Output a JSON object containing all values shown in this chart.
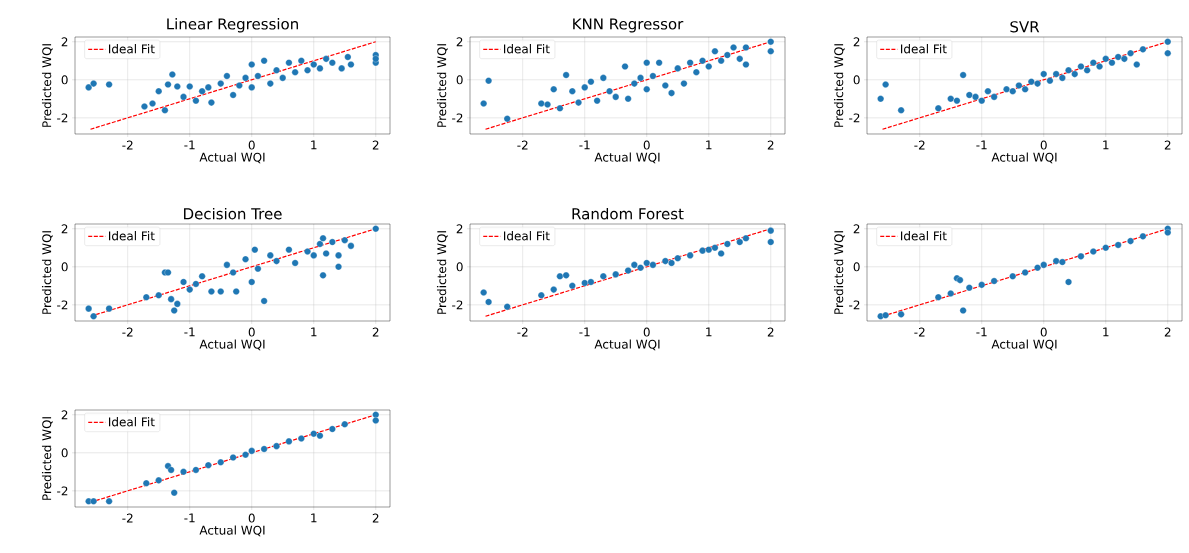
{
  "chart_data": [
    {
      "type": "scatter",
      "title": "Linear Regression",
      "xlabel": "Actual WQI",
      "ylabel": "Predicted WQI",
      "xlim": [
        -2.85,
        2.23
      ],
      "ylim": [
        -2.85,
        2.25
      ],
      "xticks": [
        -2,
        -1,
        0,
        1,
        2
      ],
      "yticks": [
        -2,
        0,
        2
      ],
      "grid": true,
      "legend": "top left",
      "series": [
        {
          "name": "Ideal Fit",
          "type": "line",
          "line_style": "dashed",
          "color": "#ff0000",
          "x": [
            -2.6,
            2
          ],
          "values": [
            -2.6,
            2
          ]
        },
        {
          "type": "scatter",
          "marker": "circle",
          "color": "#1f77b4",
          "x": [
            -2.63,
            -2.55,
            -2.3,
            -1.73,
            -1.6,
            -1.5,
            -1.4,
            -1.35,
            -1.28,
            -1.2,
            -1.1,
            -1.0,
            -0.9,
            -0.8,
            -0.7,
            -0.65,
            -0.5,
            -0.4,
            -0.3,
            -0.2,
            -0.1,
            0,
            0,
            0.1,
            0.2,
            0.3,
            0.4,
            0.5,
            0.6,
            0.7,
            0.8,
            0.9,
            1.0,
            1.1,
            1.2,
            1.3,
            1.45,
            1.55,
            1.6,
            2.0,
            2.0,
            2.0
          ],
          "values": [
            -0.4,
            -0.2,
            -0.25,
            -1.4,
            -1.25,
            -0.6,
            -1.6,
            -0.25,
            0.28,
            -0.35,
            -0.9,
            -0.35,
            -1.1,
            -0.6,
            -0.4,
            -1.2,
            -0.2,
            0.2,
            -0.8,
            -0.3,
            0.1,
            0.8,
            -0.4,
            0.2,
            1.0,
            -0.2,
            0.5,
            0.1,
            0.9,
            0.4,
            1.0,
            0.5,
            0.8,
            0.6,
            1.1,
            0.9,
            0.6,
            1.2,
            0.8,
            1.3,
            0.9,
            1.1
          ]
        }
      ]
    },
    {
      "type": "scatter",
      "title": "KNN Regressor",
      "xlabel": "Actual WQI",
      "ylabel": "Predicted WQI",
      "xlim": [
        -2.85,
        2.23
      ],
      "ylim": [
        -2.85,
        2.25
      ],
      "xticks": [
        -2,
        -1,
        0,
        1,
        2
      ],
      "yticks": [
        -2,
        0,
        2
      ],
      "grid": true,
      "legend": "top left",
      "series": [
        {
          "name": "Ideal Fit",
          "type": "line",
          "line_style": "dashed",
          "color": "#ff0000",
          "x": [
            -2.6,
            2
          ],
          "values": [
            -2.6,
            2
          ]
        },
        {
          "type": "scatter",
          "marker": "circle",
          "color": "#1f77b4",
          "x": [
            -2.63,
            -2.55,
            -2.25,
            -1.7,
            -1.6,
            -1.5,
            -1.4,
            -1.3,
            -1.2,
            -1.1,
            -1.0,
            -0.9,
            -0.8,
            -0.7,
            -0.6,
            -0.5,
            -0.35,
            -0.3,
            -0.2,
            -0.1,
            0,
            0,
            0.1,
            0.2,
            0.3,
            0.4,
            0.5,
            0.6,
            0.7,
            0.8,
            0.9,
            1.0,
            1.1,
            1.2,
            1.3,
            1.4,
            1.5,
            1.6,
            1.6,
            2.0,
            2.0
          ],
          "values": [
            -1.25,
            -0.05,
            -2.05,
            -1.25,
            -1.3,
            -0.5,
            -1.5,
            0.25,
            -0.6,
            -1.2,
            -0.4,
            -0.1,
            -1.1,
            0.1,
            -0.6,
            -0.9,
            0.7,
            -1.0,
            -0.2,
            0.1,
            0.9,
            -0.5,
            0.2,
            0.9,
            -0.3,
            -0.7,
            0.6,
            -0.2,
            0.9,
            0.4,
            1.0,
            0.7,
            1.5,
            1.0,
            1.3,
            1.7,
            1.1,
            1.7,
            0.8,
            2.0,
            1.5
          ]
        }
      ]
    },
    {
      "type": "scatter",
      "title": "SVR",
      "xlabel": "Actual WQI",
      "ylabel": "Predicted WQI",
      "xlim": [
        -2.85,
        2.23
      ],
      "ylim": [
        -2.85,
        2.25
      ],
      "xticks": [
        -2,
        -1,
        0,
        1,
        2
      ],
      "yticks": [
        -2,
        0,
        2
      ],
      "grid": true,
      "legend": "top left",
      "series": [
        {
          "name": "Ideal Fit",
          "type": "line",
          "line_style": "dashed",
          "color": "#ff0000",
          "x": [
            -2.6,
            2
          ],
          "values": [
            -2.6,
            2
          ]
        },
        {
          "type": "scatter",
          "marker": "circle",
          "color": "#1f77b4",
          "x": [
            -2.63,
            -2.55,
            -2.3,
            -1.7,
            -1.5,
            -1.4,
            -1.3,
            -1.2,
            -1.1,
            -1.0,
            -0.9,
            -0.8,
            -0.6,
            -0.5,
            -0.4,
            -0.3,
            -0.2,
            -0.1,
            0,
            0.1,
            0.2,
            0.3,
            0.4,
            0.5,
            0.6,
            0.7,
            0.8,
            0.9,
            1.0,
            1.1,
            1.2,
            1.3,
            1.4,
            1.5,
            1.6,
            2.0,
            2.0
          ],
          "values": [
            -1.0,
            -0.25,
            -1.6,
            -1.5,
            -1.0,
            -1.1,
            0.25,
            -0.8,
            -0.9,
            -1.1,
            -0.6,
            -0.9,
            -0.5,
            -0.6,
            -0.3,
            -0.5,
            -0.1,
            -0.2,
            0.3,
            -0.05,
            0.3,
            0.1,
            0.5,
            0.3,
            0.7,
            0.5,
            0.9,
            0.7,
            1.1,
            0.9,
            1.2,
            1.1,
            1.4,
            0.8,
            1.6,
            2.0,
            1.4
          ]
        }
      ]
    },
    {
      "type": "scatter",
      "title": "Decision Tree",
      "xlabel": "Actual WQI",
      "ylabel": "Predicted WQI",
      "xlim": [
        -2.85,
        2.23
      ],
      "ylim": [
        -2.85,
        2.25
      ],
      "xticks": [
        -2,
        -1,
        0,
        1,
        2
      ],
      "yticks": [
        -2,
        0,
        2
      ],
      "grid": true,
      "legend": "top left",
      "series": [
        {
          "name": "Ideal Fit",
          "type": "line",
          "line_style": "dashed",
          "color": "#ff0000",
          "x": [
            -2.6,
            2
          ],
          "values": [
            -2.6,
            2
          ]
        },
        {
          "type": "scatter",
          "marker": "circle",
          "color": "#1f77b4",
          "x": [
            -2.63,
            -2.55,
            -2.3,
            -1.7,
            -1.5,
            -1.4,
            -1.35,
            -1.3,
            -1.25,
            -1.2,
            -1.1,
            -1.0,
            -0.9,
            -0.8,
            -0.65,
            -0.5,
            -0.4,
            -0.3,
            -0.25,
            -0.1,
            0,
            0.05,
            0.1,
            0.2,
            0.3,
            0.4,
            0.6,
            0.7,
            0.9,
            1.0,
            1.1,
            1.15,
            1.15,
            1.2,
            1.3,
            1.4,
            1.4,
            1.5,
            1.6,
            2.0
          ],
          "values": [
            -2.2,
            -2.6,
            -2.2,
            -1.6,
            -1.5,
            -0.3,
            -0.3,
            -1.7,
            -2.3,
            -1.95,
            -0.8,
            -1.2,
            -0.9,
            -0.5,
            -1.3,
            -1.3,
            0.1,
            -0.3,
            -1.3,
            0.4,
            -0.8,
            0.9,
            -0.1,
            -1.8,
            0.6,
            0.3,
            0.9,
            0.2,
            0.8,
            0.6,
            1.2,
            1.5,
            -0.45,
            0.7,
            1.3,
            0.6,
            0.0,
            1.4,
            1.1,
            2.0
          ]
        }
      ]
    },
    {
      "type": "scatter",
      "title": "Random Forest",
      "xlabel": "Actual WQI",
      "ylabel": "Predicted WQI",
      "xlim": [
        -2.85,
        2.23
      ],
      "ylim": [
        -2.85,
        2.25
      ],
      "xticks": [
        -2,
        -1,
        0,
        1,
        2
      ],
      "yticks": [
        -2,
        0,
        2
      ],
      "grid": true,
      "legend": "top left",
      "series": [
        {
          "name": "Ideal Fit",
          "type": "line",
          "line_style": "dashed",
          "color": "#ff0000",
          "x": [
            -2.6,
            2
          ],
          "values": [
            -2.6,
            2
          ]
        },
        {
          "type": "scatter",
          "marker": "circle",
          "color": "#1f77b4",
          "x": [
            -2.63,
            -2.55,
            -2.25,
            -1.7,
            -1.5,
            -1.4,
            -1.3,
            -1.2,
            -1.0,
            -0.9,
            -0.7,
            -0.5,
            -0.3,
            -0.2,
            -0.1,
            0,
            0.1,
            0.3,
            0.4,
            0.5,
            0.7,
            0.9,
            1.0,
            1.1,
            1.2,
            1.3,
            1.5,
            1.6,
            2.0,
            2.0
          ],
          "values": [
            -1.35,
            -1.85,
            -2.1,
            -1.5,
            -1.2,
            -0.5,
            -0.45,
            -1.0,
            -0.85,
            -0.8,
            -0.5,
            -0.4,
            -0.2,
            0.1,
            -0.05,
            0.2,
            0.1,
            0.3,
            0.2,
            0.45,
            0.6,
            0.85,
            0.9,
            1.0,
            0.7,
            1.2,
            1.3,
            1.5,
            1.9,
            1.3
          ]
        }
      ]
    },
    {
      "type": "scatter",
      "xlabel": "Actual WQI",
      "ylabel": "Predicted WQI",
      "xlim": [
        -2.85,
        2.23
      ],
      "ylim": [
        -2.85,
        2.25
      ],
      "xticks": [
        -2,
        -1,
        0,
        1,
        2
      ],
      "yticks": [
        -2,
        0,
        2
      ],
      "grid": true,
      "legend": "top left",
      "series": [
        {
          "name": "Ideal Fit",
          "type": "line",
          "line_style": "dashed",
          "color": "#ff0000",
          "x": [
            -2.6,
            2
          ],
          "values": [
            -2.6,
            2
          ]
        },
        {
          "type": "scatter",
          "marker": "circle",
          "color": "#1f77b4",
          "x": [
            -2.63,
            -2.55,
            -2.3,
            -1.7,
            -1.5,
            -1.4,
            -1.35,
            -1.3,
            -1.2,
            -1.0,
            -0.8,
            -0.5,
            -0.3,
            -0.1,
            0,
            0.2,
            0.3,
            0.4,
            0.6,
            0.8,
            1.0,
            1.2,
            1.4,
            1.6,
            2.0,
            2.0
          ],
          "values": [
            -2.6,
            -2.55,
            -2.5,
            -1.6,
            -1.4,
            -0.6,
            -0.7,
            -2.3,
            -1.1,
            -0.95,
            -0.75,
            -0.5,
            -0.3,
            -0.05,
            0.1,
            0.3,
            0.25,
            -0.8,
            0.55,
            0.8,
            1.0,
            1.15,
            1.35,
            1.6,
            2.0,
            1.8
          ]
        }
      ]
    },
    {
      "type": "scatter",
      "xlabel": "Actual WQI",
      "ylabel": "Predicted WQI",
      "xlim": [
        -2.85,
        2.23
      ],
      "ylim": [
        -2.85,
        2.25
      ],
      "xticks": [
        -2,
        -1,
        0,
        1,
        2
      ],
      "yticks": [
        -2,
        0,
        2
      ],
      "grid": true,
      "legend": "top left",
      "series": [
        {
          "name": "Ideal Fit",
          "type": "line",
          "line_style": "dashed",
          "color": "#ff0000",
          "x": [
            -2.6,
            2
          ],
          "values": [
            -2.6,
            2
          ]
        },
        {
          "type": "scatter",
          "marker": "circle",
          "color": "#1f77b4",
          "x": [
            -2.63,
            -2.55,
            -2.3,
            -1.7,
            -1.5,
            -1.35,
            -1.3,
            -1.25,
            -1.1,
            -0.9,
            -0.7,
            -0.5,
            -0.3,
            -0.1,
            0,
            0.2,
            0.4,
            0.6,
            0.8,
            1.0,
            1.1,
            1.3,
            1.5,
            2.0,
            2.0
          ],
          "values": [
            -2.55,
            -2.55,
            -2.55,
            -1.6,
            -1.45,
            -0.7,
            -0.9,
            -2.1,
            -1.0,
            -0.9,
            -0.65,
            -0.5,
            -0.25,
            -0.1,
            0.1,
            0.2,
            0.35,
            0.6,
            0.75,
            1.0,
            0.9,
            1.25,
            1.5,
            2.0,
            1.7
          ]
        }
      ]
    }
  ]
}
